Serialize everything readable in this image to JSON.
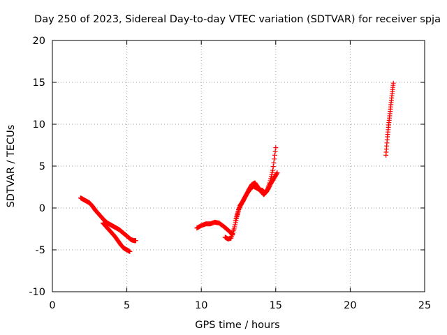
{
  "chart_data": {
    "type": "scatter",
    "title": "Day 250 of 2023, Sidereal Day-to-day VTEC variation (SDTVAR) for receiver spja",
    "xlabel": "GPS time / hours",
    "ylabel": "SDTVAR / TECUs",
    "xlim": [
      0,
      25
    ],
    "ylim": [
      -10,
      20
    ],
    "xticks": [
      "0",
      "5",
      "10",
      "15",
      "20",
      "25"
    ],
    "yticks": [
      "-10",
      "-5",
      "0",
      "5",
      "10",
      "15",
      "20"
    ],
    "grid": true,
    "legend": "none",
    "marker": "plus",
    "color": "#ff0000",
    "series": [
      {
        "values_x": [
          1.9,
          2.1,
          2.3,
          2.5,
          2.7,
          2.9,
          3.1,
          3.3,
          3.5,
          3.7,
          3.9,
          4.1,
          4.3,
          4.5,
          4.7,
          4.9,
          5.1,
          5.3,
          5.5,
          5.6
        ],
        "values_y": [
          1.2,
          1.0,
          0.8,
          0.6,
          0.2,
          -0.3,
          -0.7,
          -1.1,
          -1.5,
          -1.8,
          -2.0,
          -2.2,
          -2.4,
          -2.6,
          -2.9,
          -3.2,
          -3.5,
          -3.8,
          -3.9,
          -3.9
        ]
      },
      {
        "values_x": [
          3.4,
          3.6,
          3.8,
          4.0,
          4.2,
          4.4,
          4.6,
          4.8,
          5.0,
          5.2
        ],
        "values_y": [
          -1.8,
          -2.2,
          -2.6,
          -3.0,
          -3.4,
          -3.9,
          -4.4,
          -4.8,
          -5.0,
          -5.2
        ]
      },
      {
        "values_x": [
          9.7,
          10.0,
          10.3,
          10.6,
          10.9,
          11.2,
          11.5,
          11.7,
          11.9,
          12.1
        ],
        "values_y": [
          -2.4,
          -2.1,
          -1.9,
          -1.9,
          -1.7,
          -1.8,
          -2.2,
          -2.5,
          -2.8,
          -3.2
        ]
      },
      {
        "values_x": [
          11.6,
          11.8,
          12.0,
          12.2,
          12.4,
          12.6,
          12.8,
          13.0,
          13.2,
          13.4,
          13.6,
          13.8,
          14.0,
          14.2,
          14.4,
          14.6,
          14.8,
          15.0
        ],
        "values_y": [
          -3.5,
          -3.7,
          -3.6,
          -2.5,
          -1.0,
          0.3,
          0.8,
          1.5,
          2.2,
          2.8,
          3.0,
          2.5,
          2.0,
          1.6,
          2.0,
          3.0,
          4.5,
          7.2
        ]
      },
      {
        "values_x": [
          12.3,
          12.5,
          12.7,
          12.9,
          13.1,
          13.3,
          13.5,
          13.7,
          13.9,
          14.1,
          14.3,
          14.5,
          14.7,
          14.9,
          15.1
        ],
        "values_y": [
          -1.5,
          -0.2,
          0.5,
          1.2,
          1.8,
          2.3,
          2.6,
          2.4,
          2.2,
          2.1,
          1.8,
          2.3,
          3.0,
          3.6,
          4.2
        ]
      },
      {
        "values_x": [
          22.4,
          22.5,
          22.6,
          22.7,
          22.8,
          22.9
        ],
        "values_y": [
          6.3,
          8.5,
          10.2,
          11.8,
          13.4,
          14.9
        ]
      }
    ]
  }
}
